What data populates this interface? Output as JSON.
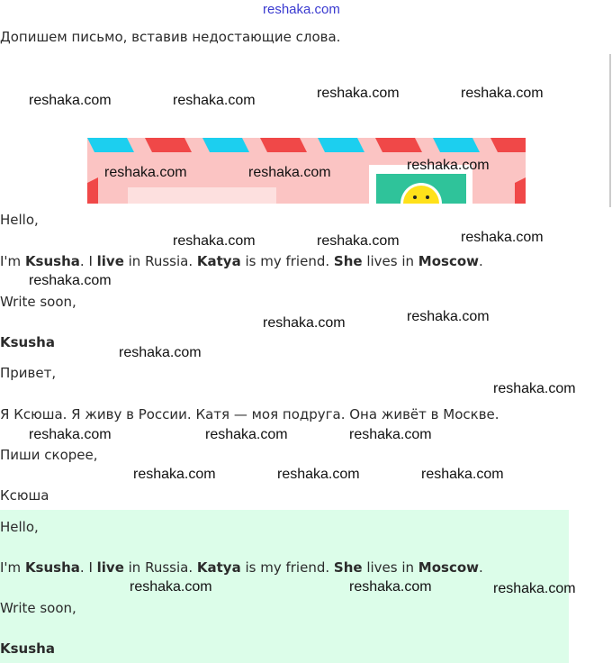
{
  "site_watermark": "reshaka.com",
  "instruction": "Допишем письмо, вставив недостающие слова.",
  "letter_en": {
    "greeting": "Hello,",
    "body": [
      {
        "text": "I'm ",
        "bold": false
      },
      {
        "text": "Ksusha",
        "bold": true
      },
      {
        "text": ". I ",
        "bold": false
      },
      {
        "text": "live",
        "bold": true
      },
      {
        "text": " in Russia. ",
        "bold": false
      },
      {
        "text": "Katya",
        "bold": true
      },
      {
        "text": " is my friend. ",
        "bold": false
      },
      {
        "text": "She",
        "bold": true
      },
      {
        "text": " lives in ",
        "bold": false
      },
      {
        "text": "Moscow",
        "bold": true
      },
      {
        "text": ".",
        "bold": false
      }
    ],
    "closing": "Write soon,",
    "signature": "Ksusha"
  },
  "letter_ru": {
    "greeting": "Привет,",
    "body": "Я Ксюша. Я живу в России. Катя — моя подруга. Она живёт в Москве.",
    "closing": "Пиши скорее,",
    "signature": "Ксюша"
  },
  "answer_en": {
    "greeting": "Hello,",
    "closing": "Write soon,",
    "signature": "Ksusha"
  },
  "watermark": "reshaka.com",
  "colors": {
    "answer_bg": "#dcfde9",
    "stripe_red": "#f04848",
    "stripe_blue": "#1ccfef",
    "envelope": "#fbc4c3"
  }
}
